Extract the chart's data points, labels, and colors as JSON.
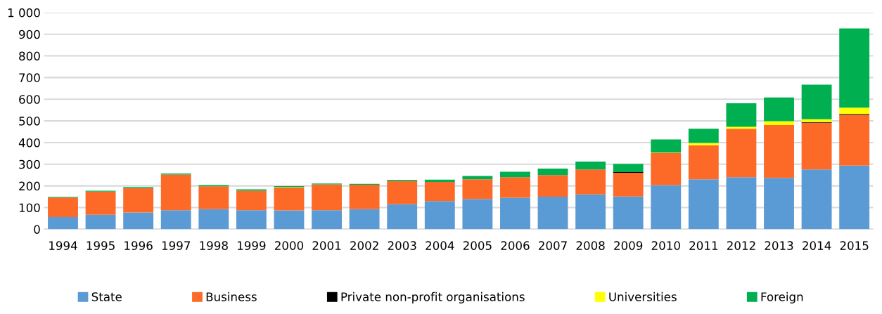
{
  "chart_data": {
    "type": "bar",
    "stacked": true,
    "categories": [
      "1994",
      "1995",
      "1996",
      "1997",
      "1998",
      "1999",
      "2000",
      "2001",
      "2002",
      "2003",
      "2004",
      "2005",
      "2006",
      "2007",
      "2008",
      "2009",
      "2010",
      "2011",
      "2012",
      "2013",
      "2014",
      "2015"
    ],
    "series": [
      {
        "name": "State",
        "color": "#5b9bd5",
        "values": [
          56,
          67,
          77,
          88,
          93,
          88,
          87,
          88,
          93,
          115,
          130,
          140,
          145,
          150,
          161,
          151,
          204,
          230,
          240,
          237,
          276,
          294
        ]
      },
      {
        "name": "Business",
        "color": "#fd6a28",
        "values": [
          90,
          107,
          113,
          164,
          105,
          90,
          106,
          119,
          112,
          107,
          88,
          90,
          95,
          100,
          115,
          109,
          148,
          158,
          224,
          244,
          215,
          234
        ]
      },
      {
        "name": "Private non-profit organisations",
        "color": "#000000",
        "values": [
          0,
          0,
          0,
          0,
          0,
          0,
          0,
          0,
          0,
          0,
          0,
          0,
          0,
          0,
          0,
          4,
          0,
          0,
          0,
          0,
          4,
          4
        ]
      },
      {
        "name": "Universities",
        "color": "#ffff00",
        "values": [
          0,
          0,
          0,
          0,
          0,
          0,
          2,
          0,
          0,
          0,
          0,
          0,
          0,
          0,
          0,
          0,
          2,
          10,
          9,
          18,
          13,
          29
        ]
      },
      {
        "name": "Foreign",
        "color": "#00b050",
        "values": [
          3,
          4,
          5,
          5,
          6,
          6,
          4,
          4,
          4,
          6,
          11,
          16,
          25,
          30,
          36,
          38,
          60,
          66,
          108,
          109,
          159,
          366
        ]
      }
    ],
    "ylim": [
      0,
      1000
    ],
    "yticks": [
      0,
      100,
      200,
      300,
      400,
      500,
      600,
      700,
      800,
      900,
      {
        "value": 1000,
        "label": "1 000"
      }
    ],
    "grid": "y",
    "legend": "bottom"
  }
}
